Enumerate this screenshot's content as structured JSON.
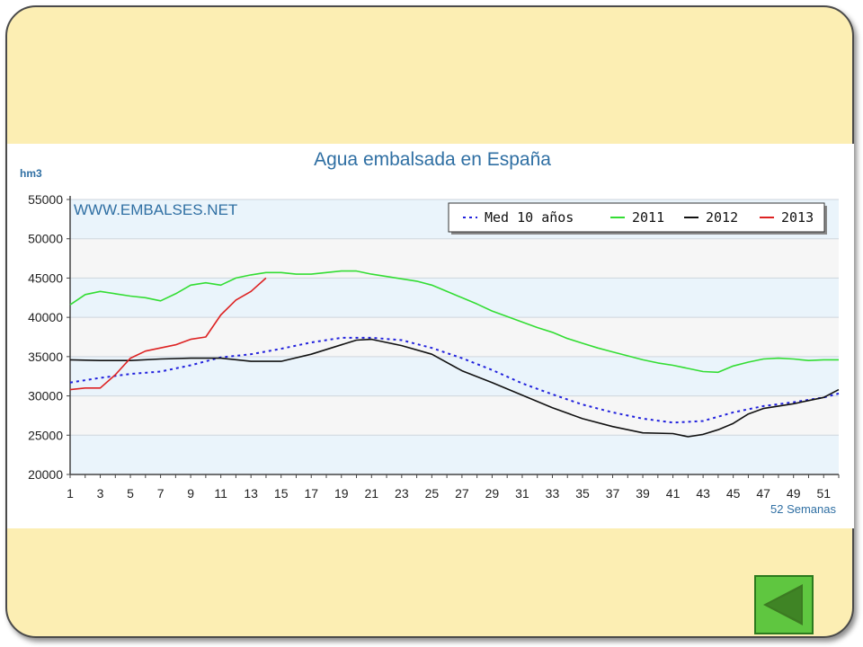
{
  "chart_data": {
    "type": "line",
    "title": "Agua embalsada en España",
    "ylabel": "hm3",
    "xlabel": "52 Semanas",
    "watermark": "WWW.EMBALSES.NET",
    "ylim": [
      20000,
      55000
    ],
    "xlim": [
      1,
      52
    ],
    "yticks": [
      "20000",
      "25000",
      "30000",
      "35000",
      "40000",
      "45000",
      "50000",
      "55000"
    ],
    "xticks": [
      "1",
      "3",
      "5",
      "7",
      "9",
      "11",
      "13",
      "15",
      "17",
      "19",
      "21",
      "23",
      "25",
      "27",
      "29",
      "31",
      "33",
      "35",
      "37",
      "39",
      "41",
      "43",
      "45",
      "47",
      "49",
      "51"
    ],
    "legend_position": "top-right",
    "series": [
      {
        "name": "Med 10 años",
        "color": "#2222dd",
        "style": "dotted",
        "x": [
          1,
          3,
          5,
          7,
          9,
          11,
          13,
          15,
          17,
          19,
          21,
          23,
          25,
          27,
          29,
          31,
          33,
          35,
          37,
          39,
          41,
          43,
          45,
          47,
          49,
          51,
          52
        ],
        "values": [
          31700,
          32300,
          32800,
          33100,
          33900,
          34900,
          35300,
          36000,
          36800,
          37400,
          37400,
          37100,
          36100,
          34800,
          33300,
          31600,
          30200,
          28900,
          27900,
          27100,
          26600,
          26800,
          27900,
          28700,
          29200,
          29800,
          30300
        ]
      },
      {
        "name": "2011",
        "color": "#33dd33",
        "style": "solid",
        "x": [
          1,
          2,
          3,
          4,
          5,
          6,
          7,
          8,
          9,
          10,
          11,
          12,
          13,
          14,
          15,
          16,
          17,
          18,
          19,
          20,
          21,
          22,
          23,
          24,
          25,
          26,
          27,
          28,
          29,
          30,
          31,
          32,
          33,
          34,
          35,
          36,
          37,
          38,
          39,
          40,
          41,
          42,
          43,
          44,
          45,
          46,
          47,
          48,
          49,
          50,
          51,
          52
        ],
        "values": [
          41600,
          42900,
          43300,
          43000,
          42700,
          42500,
          42100,
          43000,
          44100,
          44400,
          44100,
          45000,
          45400,
          45700,
          45700,
          45500,
          45500,
          45700,
          45900,
          45900,
          45500,
          45200,
          44900,
          44600,
          44100,
          43300,
          42500,
          41700,
          40800,
          40100,
          39400,
          38700,
          38100,
          37300,
          36700,
          36100,
          35600,
          35100,
          34600,
          34200,
          33900,
          33500,
          33100,
          33000,
          33800,
          34300,
          34700,
          34800,
          34700,
          34500,
          34600,
          34600
        ]
      },
      {
        "name": "2012",
        "color": "#111111",
        "style": "solid",
        "x": [
          1,
          3,
          5,
          7,
          9,
          11,
          13,
          15,
          17,
          19,
          20,
          21,
          23,
          25,
          27,
          29,
          31,
          33,
          35,
          37,
          39,
          41,
          42,
          43,
          44,
          45,
          46,
          47,
          49,
          51,
          52
        ],
        "values": [
          34600,
          34500,
          34500,
          34700,
          34800,
          34800,
          34400,
          34400,
          35300,
          36500,
          37100,
          37200,
          36400,
          35300,
          33200,
          31700,
          30100,
          28500,
          27100,
          26100,
          25300,
          25200,
          24800,
          25100,
          25700,
          26500,
          27700,
          28400,
          29000,
          29800,
          30800
        ]
      },
      {
        "name": "2013",
        "color": "#dd2222",
        "style": "solid",
        "x": [
          1,
          2,
          3,
          4,
          5,
          6,
          7,
          8,
          9,
          10,
          11,
          12,
          13,
          14
        ],
        "values": [
          30800,
          31000,
          31000,
          32700,
          34800,
          35700,
          36100,
          36500,
          37200,
          37500,
          40300,
          42200,
          43300,
          45000
        ]
      }
    ]
  }
}
